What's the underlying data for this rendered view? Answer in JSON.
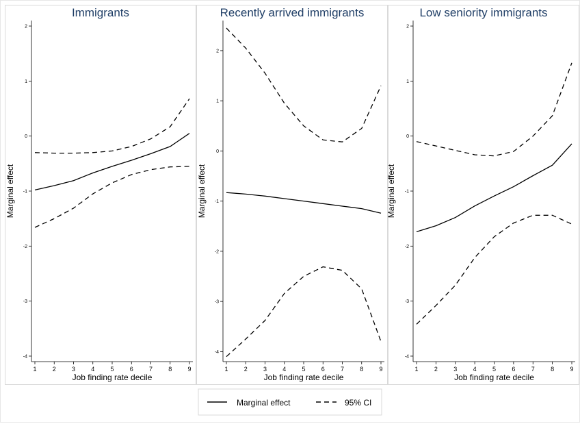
{
  "chart_data": [
    {
      "type": "line",
      "title": "Immigrants",
      "xlabel": "Job finding rate decile",
      "ylabel": "Marginal effect",
      "x": [
        1,
        2,
        3,
        4,
        5,
        6,
        7,
        8,
        9
      ],
      "ylim": [
        -4.1,
        2.1
      ],
      "yticks": [
        -4,
        -3,
        -2,
        -1,
        0,
        1,
        2
      ],
      "series": [
        {
          "name": "Marginal effect",
          "style": "solid",
          "values": [
            -0.98,
            -0.9,
            -0.81,
            -0.67,
            -0.55,
            -0.44,
            -0.32,
            -0.19,
            0.05
          ]
        },
        {
          "name": "95% CI",
          "style": "dashed",
          "values": [
            -0.3,
            -0.31,
            -0.31,
            -0.3,
            -0.27,
            -0.19,
            -0.05,
            0.17,
            0.68
          ]
        },
        {
          "name": "95% CI",
          "style": "dashed",
          "values": [
            -1.66,
            -1.5,
            -1.31,
            -1.05,
            -0.85,
            -0.7,
            -0.61,
            -0.56,
            -0.55
          ]
        }
      ]
    },
    {
      "type": "line",
      "title": "Recently arrived immigrants",
      "xlabel": "Job finding rate decile",
      "ylabel": "Marginal effect",
      "x": [
        1,
        2,
        3,
        4,
        5,
        6,
        7,
        8,
        9
      ],
      "ylim": [
        -4.2,
        2.6
      ],
      "yticks": [
        -4,
        -3,
        -2,
        -1,
        0,
        1,
        2
      ],
      "series": [
        {
          "name": "Marginal effect",
          "style": "solid",
          "values": [
            -0.83,
            -0.86,
            -0.9,
            -0.95,
            -1.0,
            -1.05,
            -1.1,
            -1.15,
            -1.24
          ]
        },
        {
          "name": "95% CI",
          "style": "dashed",
          "values": [
            2.45,
            2.05,
            1.55,
            0.95,
            0.5,
            0.22,
            0.18,
            0.45,
            1.3
          ]
        },
        {
          "name": "95% CI",
          "style": "dashed",
          "values": [
            -4.1,
            -3.75,
            -3.38,
            -2.84,
            -2.5,
            -2.31,
            -2.38,
            -2.75,
            -3.8
          ]
        }
      ]
    },
    {
      "type": "line",
      "title": "Low seniority immigrants",
      "xlabel": "Job finding rate decile",
      "ylabel": "Marginal effect",
      "x": [
        1,
        2,
        3,
        4,
        5,
        6,
        7,
        8,
        9
      ],
      "ylim": [
        -4.1,
        2.1
      ],
      "yticks": [
        -4,
        -3,
        -2,
        -1,
        0,
        1,
        2
      ],
      "series": [
        {
          "name": "Marginal effect",
          "style": "solid",
          "values": [
            -1.74,
            -1.63,
            -1.48,
            -1.27,
            -1.09,
            -0.92,
            -0.72,
            -0.53,
            -0.14
          ]
        },
        {
          "name": "95% CI",
          "style": "dashed",
          "values": [
            -0.1,
            -0.18,
            -0.26,
            -0.34,
            -0.36,
            -0.28,
            0.0,
            0.37,
            1.33
          ]
        },
        {
          "name": "95% CI",
          "style": "dashed",
          "values": [
            -3.42,
            -3.08,
            -2.71,
            -2.21,
            -1.83,
            -1.58,
            -1.44,
            -1.44,
            -1.6
          ]
        }
      ]
    }
  ],
  "legend": {
    "placement": "bottom",
    "items": [
      {
        "label": "Marginal effect",
        "style": "solid"
      },
      {
        "label": "95% CI",
        "style": "dashed"
      }
    ]
  },
  "colors": {
    "line": "#000000",
    "title": "#1f3e66",
    "frame": "#d9d9d9"
  }
}
